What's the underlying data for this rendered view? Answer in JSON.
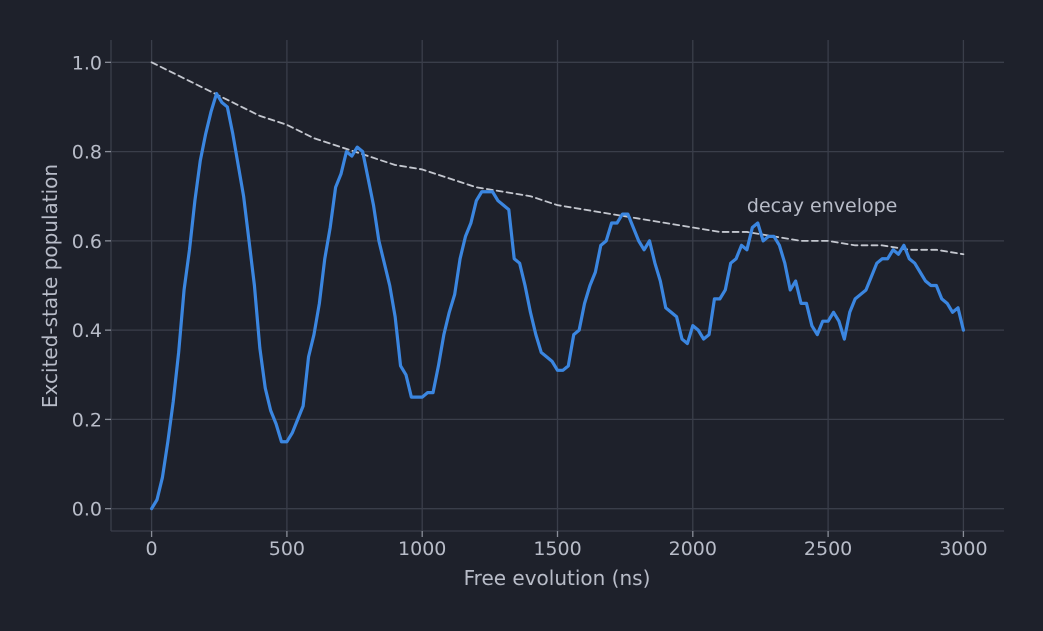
{
  "chart_data": {
    "type": "line",
    "title": "",
    "xlabel": "Free evolution (ns)",
    "ylabel": "Excited-state population",
    "xlim": [
      -150,
      3150
    ],
    "ylim": [
      -0.05,
      1.05
    ],
    "xticks": [
      0,
      500,
      1000,
      1500,
      2000,
      2500,
      3000
    ],
    "yticks": [
      0.0,
      0.2,
      0.4,
      0.6,
      0.8,
      1.0
    ],
    "xtick_labels": [
      "0",
      "500",
      "1000",
      "1500",
      "2000",
      "2500",
      "3000"
    ],
    "ytick_labels": [
      "0.0",
      "0.2",
      "0.4",
      "0.6",
      "0.8",
      "1.0"
    ],
    "grid": true,
    "legend": "none",
    "background": "#1e212b",
    "series": [
      {
        "name": "",
        "style": "solid",
        "color": "#3b86e0",
        "x": [
          0,
          20,
          40,
          60,
          80,
          100,
          120,
          140,
          160,
          180,
          200,
          220,
          240,
          260,
          280,
          300,
          320,
          340,
          360,
          380,
          400,
          420,
          440,
          460,
          480,
          500,
          520,
          540,
          560,
          580,
          600,
          620,
          640,
          660,
          680,
          700,
          720,
          740,
          760,
          780,
          800,
          820,
          840,
          860,
          880,
          900,
          920,
          940,
          960,
          980,
          1000,
          1020,
          1040,
          1060,
          1080,
          1100,
          1120,
          1140,
          1160,
          1180,
          1200,
          1220,
          1240,
          1260,
          1280,
          1300,
          1320,
          1340,
          1360,
          1380,
          1400,
          1420,
          1440,
          1460,
          1480,
          1500,
          1520,
          1540,
          1560,
          1580,
          1600,
          1620,
          1640,
          1660,
          1680,
          1700,
          1720,
          1740,
          1760,
          1780,
          1800,
          1820,
          1840,
          1860,
          1880,
          1900,
          1920,
          1940,
          1960,
          1980,
          2000,
          2020,
          2040,
          2060,
          2080,
          2100,
          2120,
          2140,
          2160,
          2180,
          2200,
          2220,
          2240,
          2260,
          2280,
          2300,
          2320,
          2340,
          2360,
          2380,
          2400,
          2420,
          2440,
          2460,
          2480,
          2500,
          2520,
          2540,
          2560,
          2580,
          2600,
          2620,
          2640,
          2660,
          2680,
          2700,
          2720,
          2740,
          2760,
          2780,
          2800,
          2820,
          2840,
          2860,
          2880,
          2900,
          2920,
          2940,
          2960,
          2980,
          3000
        ],
        "y": [
          0.0,
          0.02,
          0.07,
          0.15,
          0.24,
          0.35,
          0.49,
          0.58,
          0.69,
          0.78,
          0.84,
          0.89,
          0.93,
          0.91,
          0.9,
          0.84,
          0.77,
          0.7,
          0.6,
          0.5,
          0.36,
          0.27,
          0.22,
          0.19,
          0.15,
          0.15,
          0.17,
          0.2,
          0.23,
          0.34,
          0.39,
          0.46,
          0.56,
          0.63,
          0.72,
          0.75,
          0.8,
          0.79,
          0.81,
          0.8,
          0.74,
          0.68,
          0.6,
          0.55,
          0.5,
          0.43,
          0.32,
          0.3,
          0.25,
          0.25,
          0.25,
          0.26,
          0.26,
          0.32,
          0.39,
          0.44,
          0.48,
          0.56,
          0.61,
          0.64,
          0.69,
          0.71,
          0.71,
          0.71,
          0.69,
          0.68,
          0.67,
          0.56,
          0.55,
          0.5,
          0.44,
          0.39,
          0.35,
          0.34,
          0.33,
          0.31,
          0.31,
          0.32,
          0.39,
          0.4,
          0.46,
          0.5,
          0.53,
          0.59,
          0.6,
          0.64,
          0.64,
          0.66,
          0.66,
          0.63,
          0.6,
          0.58,
          0.6,
          0.55,
          0.51,
          0.45,
          0.44,
          0.43,
          0.38,
          0.37,
          0.41,
          0.4,
          0.38,
          0.39,
          0.47,
          0.47,
          0.49,
          0.55,
          0.56,
          0.59,
          0.58,
          0.63,
          0.64,
          0.6,
          0.61,
          0.61,
          0.59,
          0.55,
          0.49,
          0.51,
          0.46,
          0.46,
          0.41,
          0.39,
          0.42,
          0.42,
          0.44,
          0.42,
          0.38,
          0.44,
          0.47,
          0.48,
          0.49,
          0.52,
          0.55,
          0.56,
          0.56,
          0.58,
          0.57,
          0.59,
          0.56,
          0.55,
          0.53,
          0.51,
          0.5,
          0.5,
          0.47,
          0.46,
          0.44,
          0.45,
          0.4
        ]
      },
      {
        "name": "",
        "style": "dashed",
        "color": "#c4c7cf",
        "x": [
          0,
          100,
          200,
          300,
          400,
          500,
          600,
          700,
          800,
          900,
          1000,
          1100,
          1200,
          1300,
          1400,
          1500,
          1600,
          1700,
          1800,
          1900,
          2000,
          2100,
          2200,
          2300,
          2400,
          2500,
          2600,
          2700,
          2800,
          2900,
          3000
        ],
        "y": [
          1.0,
          0.97,
          0.94,
          0.91,
          0.88,
          0.86,
          0.83,
          0.81,
          0.79,
          0.77,
          0.76,
          0.74,
          0.72,
          0.71,
          0.7,
          0.68,
          0.67,
          0.66,
          0.65,
          0.64,
          0.63,
          0.62,
          0.62,
          0.61,
          0.6,
          0.6,
          0.59,
          0.59,
          0.58,
          0.58,
          0.57
        ]
      }
    ],
    "annotations": [
      {
        "text": "decay envelope",
        "x": 2200,
        "y": 0.665
      }
    ]
  }
}
